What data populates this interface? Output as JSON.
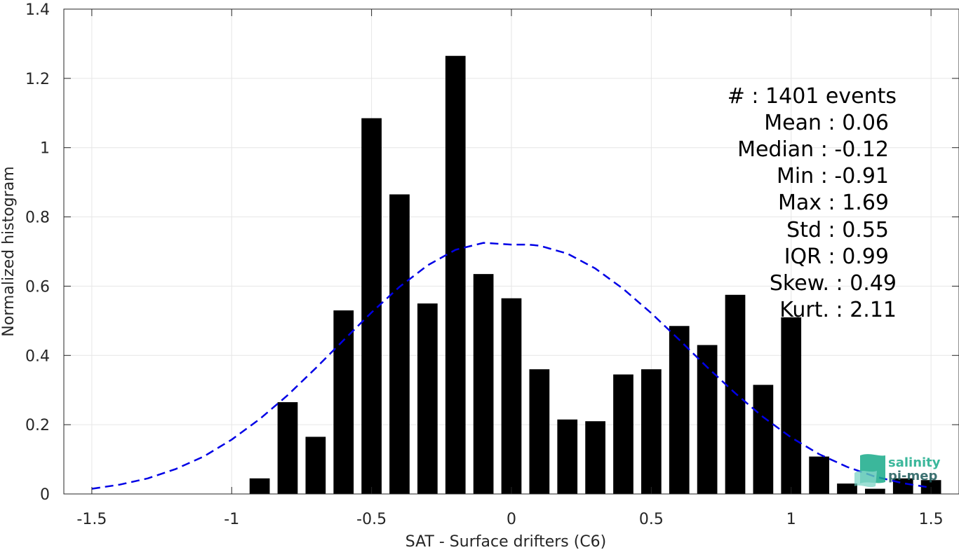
{
  "chart_data": {
    "type": "bar",
    "xlabel": "SAT - Surface drifters (C6)",
    "ylabel": "Normalized histogram",
    "xlim": [
      -1.6,
      1.6
    ],
    "ylim": [
      0,
      1.4
    ],
    "grid": true,
    "x_ticks": [
      -1.5,
      -1,
      -0.5,
      0,
      0.5,
      1,
      1.5
    ],
    "x_tick_labels": [
      "-1.5",
      "-1",
      "-0.5",
      "0",
      "0.5",
      "1",
      "1.5"
    ],
    "y_ticks": [
      0,
      0.2,
      0.4,
      0.6,
      0.8,
      1,
      1.2,
      1.4
    ],
    "y_tick_labels": [
      "0",
      "0.2",
      "0.4",
      "0.6",
      "0.8",
      "1",
      "1.2",
      "1.4"
    ],
    "bin_width": 0.1,
    "bars": {
      "x": [
        -0.9,
        -0.8,
        -0.7,
        -0.6,
        -0.5,
        -0.4,
        -0.3,
        -0.2,
        -0.1,
        0.0,
        0.1,
        0.2,
        0.3,
        0.4,
        0.5,
        0.6,
        0.7,
        0.8,
        0.9,
        1.0,
        1.1,
        1.2,
        1.3,
        1.4,
        1.5
      ],
      "values": [
        0.045,
        0.265,
        0.165,
        0.53,
        1.085,
        0.865,
        0.55,
        1.265,
        0.635,
        0.565,
        0.36,
        0.215,
        0.21,
        0.345,
        0.36,
        0.485,
        0.43,
        0.575,
        0.315,
        0.51,
        0.108,
        0.03,
        0.015,
        0.045,
        0.04
      ],
      "color": "#000000"
    },
    "fit_curve": {
      "style": "dashed",
      "color": "#0000e6",
      "x": [
        -1.5,
        -1.4,
        -1.3,
        -1.2,
        -1.1,
        -1.0,
        -0.9,
        -0.8,
        -0.7,
        -0.6,
        -0.5,
        -0.4,
        -0.3,
        -0.2,
        -0.1,
        0.0,
        0.06,
        0.1,
        0.2,
        0.3,
        0.4,
        0.5,
        0.6,
        0.7,
        0.8,
        0.9,
        1.0,
        1.1,
        1.2,
        1.3,
        1.4,
        1.5
      ],
      "y": [
        0.015,
        0.027,
        0.045,
        0.072,
        0.108,
        0.157,
        0.216,
        0.285,
        0.363,
        0.444,
        0.524,
        0.598,
        0.66,
        0.705,
        0.725,
        0.72,
        0.72,
        0.717,
        0.694,
        0.651,
        0.592,
        0.522,
        0.445,
        0.366,
        0.291,
        0.222,
        0.163,
        0.115,
        0.078,
        0.05,
        0.031,
        0.018
      ]
    },
    "annotation": {
      "lines": [
        "#  : 1401 events",
        "Mean : 0.06",
        "Median : -0.12",
        "Min : -0.91",
        "Max : 1.69",
        "Std : 0.55",
        "IQR : 0.99",
        "Skew. : 0.49",
        "Kurt. : 2.11"
      ],
      "placement": "top-right"
    }
  },
  "logo": {
    "line1": "salinity",
    "line2": "pi-mep",
    "color1": "#1aab8a",
    "color2": "#1c5a5a"
  }
}
